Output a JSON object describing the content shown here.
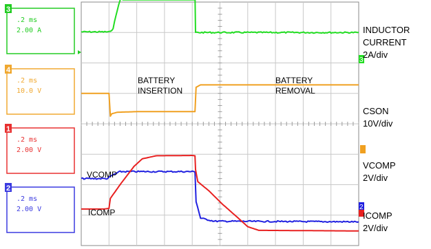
{
  "chart_data": {
    "type": "line",
    "x_divisions": 10,
    "y_divisions": 8,
    "channel_boxes": [
      {
        "number": "3",
        "timebase": ".2 ms",
        "scale": "2.00 A",
        "color": "#22cc22"
      },
      {
        "number": "4",
        "timebase": ".2 ms",
        "scale": "10.0 V",
        "color": "#f0a830"
      },
      {
        "number": "1",
        "timebase": ".2 ms",
        "scale": "2.00 V",
        "color": "#e83030"
      },
      {
        "number": "2",
        "timebase": ".2 ms",
        "scale": "2.00 V",
        "color": "#3a3ae0"
      }
    ],
    "annotations": [
      {
        "id": "battery-insertion",
        "lines": [
          "BATTERY",
          "INSERTION"
        ]
      },
      {
        "id": "battery-removal",
        "lines": [
          "BATTERY",
          "REMOVAL"
        ]
      },
      {
        "id": "vcomp",
        "lines": [
          "VCOMP"
        ]
      },
      {
        "id": "icomp",
        "lines": [
          "ICOMP"
        ]
      }
    ],
    "right_labels": [
      {
        "id": "inductor-current",
        "lines": [
          "INDUCTOR",
          "CURRENT",
          "2A/div"
        ]
      },
      {
        "id": "cson",
        "lines": [
          "CSON",
          "10V/div"
        ]
      },
      {
        "id": "vcomp-scale",
        "lines": [
          "VCOMP",
          "2V/div"
        ]
      },
      {
        "id": "icomp-scale",
        "lines": [
          "ICOMP",
          "2V/div"
        ]
      }
    ],
    "series": [
      {
        "id": "inductor-current",
        "color": "#22dd22",
        "width": 2,
        "noise": 0.5,
        "points": [
          [
            0,
            7.02
          ],
          [
            1.05,
            7.02
          ],
          [
            1.15,
            7.15
          ],
          [
            1.3,
            7.75
          ],
          [
            1.45,
            8.2
          ],
          [
            1.5,
            8.3
          ],
          [
            2.5,
            8.3
          ],
          [
            4.1,
            8.3
          ],
          [
            4.12,
            7.0
          ],
          [
            4.2,
            7.0
          ],
          [
            10,
            7.0
          ]
        ],
        "band": {
          "x0": 1.48,
          "x1": 4.1,
          "y0": 8.05,
          "y1": 8.5
        }
      },
      {
        "id": "cson",
        "color": "#f0a020",
        "width": 2,
        "noise": 0,
        "points": [
          [
            0,
            5.0
          ],
          [
            1.0,
            5.0
          ],
          [
            1.05,
            4.25
          ],
          [
            1.1,
            4.33
          ],
          [
            1.3,
            4.38
          ],
          [
            2.0,
            4.4
          ],
          [
            4.1,
            4.4
          ],
          [
            4.14,
            5.2
          ],
          [
            4.3,
            5.28
          ],
          [
            10,
            5.28
          ]
        ]
      },
      {
        "id": "vcomp",
        "color": "#2020e0",
        "width": 2,
        "noise": 0.5,
        "points": [
          [
            0,
            2.2
          ],
          [
            0.95,
            2.2
          ],
          [
            1.1,
            2.3
          ],
          [
            1.4,
            2.43
          ],
          [
            2.5,
            2.43
          ],
          [
            4.1,
            2.43
          ],
          [
            4.14,
            1.45
          ],
          [
            4.3,
            0.9
          ],
          [
            4.8,
            0.8
          ],
          [
            10,
            0.78
          ]
        ]
      },
      {
        "id": "icomp",
        "color": "#e82020",
        "width": 2,
        "noise": 0,
        "points": [
          [
            0,
            1.2
          ],
          [
            0.8,
            1.2
          ],
          [
            1.0,
            1.22
          ],
          [
            1.05,
            1.55
          ],
          [
            1.4,
            2.0
          ],
          [
            1.9,
            2.6
          ],
          [
            2.2,
            2.85
          ],
          [
            2.7,
            2.95
          ],
          [
            4.0,
            2.96
          ],
          [
            4.1,
            2.95
          ],
          [
            4.12,
            2.5
          ],
          [
            4.2,
            2.1
          ],
          [
            4.6,
            1.8
          ],
          [
            5.1,
            1.35
          ],
          [
            5.6,
            0.95
          ],
          [
            6.0,
            0.62
          ],
          [
            6.4,
            0.5
          ],
          [
            10,
            0.48
          ]
        ]
      }
    ]
  }
}
